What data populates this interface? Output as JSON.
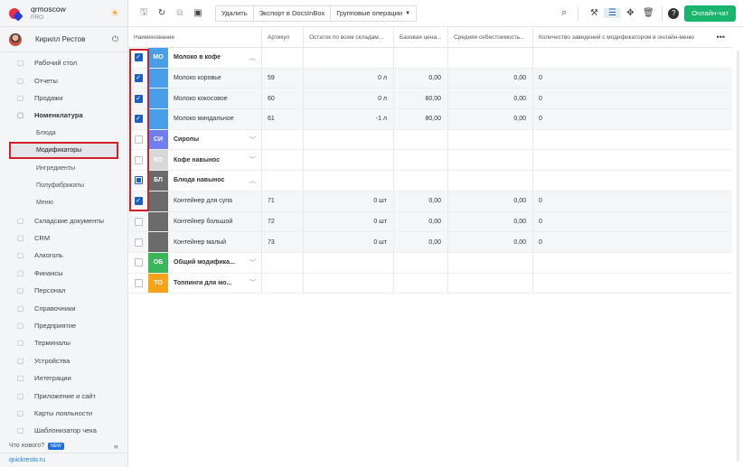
{
  "brand": {
    "name": "qrmoscow",
    "plan": "PRO"
  },
  "user": {
    "name": "Кирилл Рестов"
  },
  "nav": [
    {
      "label": "Рабочий стол",
      "icon": "dashboard-icon"
    },
    {
      "label": "Отчеты",
      "icon": "reports-icon"
    },
    {
      "label": "Продажи",
      "icon": "sales-icon"
    },
    {
      "label": "Номенклатура",
      "icon": "nomenclature-icon",
      "bold": true
    }
  ],
  "nav_sub": [
    "Блюда",
    "Модификаторы",
    "Ингредиенты",
    "Полуфабрикаты",
    "Меню"
  ],
  "nav_rest": [
    {
      "label": "Складские документы",
      "icon": "warehouse-icon"
    },
    {
      "label": "CRM",
      "icon": "crm-icon"
    },
    {
      "label": "Алкоголь",
      "icon": "alcohol-icon"
    },
    {
      "label": "Финансы",
      "icon": "finance-icon"
    },
    {
      "label": "Персонал",
      "icon": "staff-icon"
    },
    {
      "label": "Справочники",
      "icon": "reference-icon"
    },
    {
      "label": "Предприятие",
      "icon": "enterprise-icon"
    },
    {
      "label": "Терминалы",
      "icon": "terminal-icon"
    },
    {
      "label": "Устройства",
      "icon": "devices-icon"
    },
    {
      "label": "Интеграции",
      "icon": "integrations-icon"
    },
    {
      "label": "Приложение и сайт",
      "icon": "app-icon"
    },
    {
      "label": "Карты лояльности",
      "icon": "loyalty-icon"
    },
    {
      "label": "Шаблонизатор чека",
      "icon": "receipt-icon"
    }
  ],
  "footer": {
    "whats_new": "Что нового?",
    "badge": "NEW",
    "site": "quickresto.ru"
  },
  "toolbar": {
    "delete": "Удалить",
    "export": "Экспорт в DocsInBox",
    "group_ops": "Групповые операции",
    "chat": "Онлайн-чат"
  },
  "columns": [
    "Наименование",
    "Артикул",
    "Остаток по всем складам...",
    "Базовая цена...",
    "Средняя себестоимость...",
    "Количество заведений с модификатором в онлайн-меню"
  ],
  "rows": [
    {
      "type": "group",
      "checked": "on",
      "tag": "МО",
      "color": "#4a9ee8",
      "name": "Молоко в кофе",
      "open": true
    },
    {
      "type": "child",
      "checked": "on",
      "color": "#4a9ee8",
      "name": "Молоко коровье",
      "art": "59",
      "stock": "0 л",
      "price": "0,00",
      "cost": "0,00",
      "count": "0"
    },
    {
      "type": "child",
      "checked": "on",
      "color": "#4a9ee8",
      "name": "Молоко кокосовое",
      "art": "60",
      "stock": "0 л",
      "price": "80,00",
      "cost": "0,00",
      "count": "0"
    },
    {
      "type": "child",
      "checked": "on",
      "color": "#4a9ee8",
      "name": "Молоко миндальное",
      "art": "61",
      "stock": "-1 л",
      "price": "80,00",
      "cost": "0,00",
      "count": "0"
    },
    {
      "type": "group",
      "checked": "off",
      "tag": "СИ",
      "color": "#6f7ff0",
      "name": "Сиропы",
      "open": false
    },
    {
      "type": "group",
      "checked": "off",
      "tag": "КО",
      "color": "#d8d8d8",
      "name": "Кофе навынос",
      "open": false
    },
    {
      "type": "group",
      "checked": "partial",
      "tag": "БЛ",
      "color": "#6b6b6b",
      "name": "Блюда навынос",
      "open": true
    },
    {
      "type": "child",
      "checked": "on",
      "color": "#6b6b6b",
      "name": "Контейнер для супа",
      "art": "71",
      "stock": "0 шт",
      "price": "0,00",
      "cost": "0,00",
      "count": "0"
    },
    {
      "type": "child",
      "checked": "off",
      "color": "#6b6b6b",
      "name": "Контейнер большой",
      "art": "72",
      "stock": "0 шт",
      "price": "0,00",
      "cost": "0,00",
      "count": "0"
    },
    {
      "type": "child",
      "checked": "off",
      "color": "#6b6b6b",
      "name": "Контейнер малый",
      "art": "73",
      "stock": "0 шт",
      "price": "0,00",
      "cost": "0,00",
      "count": "0"
    },
    {
      "type": "group",
      "checked": "off",
      "tag": "ОБ",
      "color": "#3cb55a",
      "name": "Общий модифика...",
      "open": false
    },
    {
      "type": "group",
      "checked": "off",
      "tag": "ТО",
      "color": "#f5a31a",
      "name": "Топпинги для мо...",
      "open": false
    }
  ]
}
